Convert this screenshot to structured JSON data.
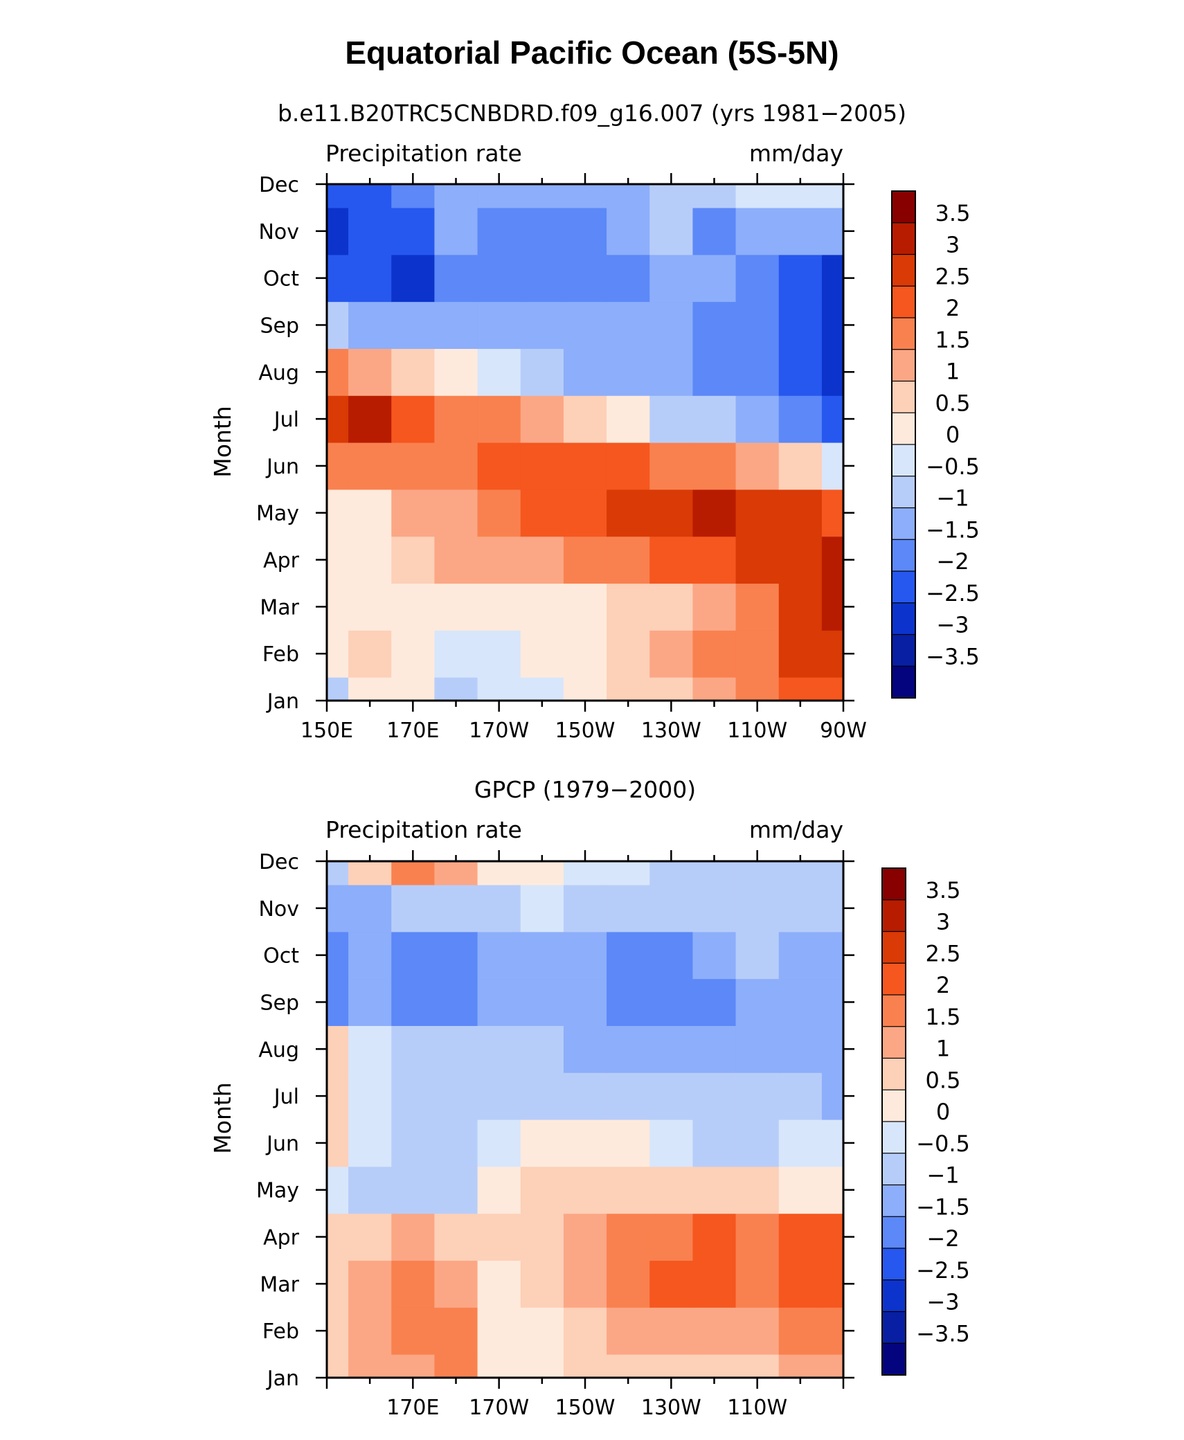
{
  "figure": {
    "title": "Equatorial Pacific Ocean (5S-5N)"
  },
  "colorbar": {
    "levels": [
      "3.5",
      "3",
      "2.5",
      "2",
      "1.5",
      "1",
      "0.5",
      "0",
      "−0.5",
      "−1",
      "−1.5",
      "−2",
      "−2.5",
      "−3",
      "−3.5"
    ],
    "colors": [
      "#880000",
      "#b81c00",
      "#d93a06",
      "#f5571f",
      "#f9814f",
      "#fba785",
      "#fdd0b8",
      "#feeadc",
      "#d7e6fb",
      "#b7cdf9",
      "#8daefa",
      "#5c88f8",
      "#2658ef",
      "#0c34cc",
      "#081fa3",
      "#04047f"
    ]
  },
  "chart_data": [
    {
      "type": "heatmap",
      "subtitle": "b.e11.B20TRC5CNBDRD.f09_g16.007 (yrs 1981−2005)",
      "left_label": "Precipitation rate",
      "right_label": "mm/day",
      "ylabel": "Month",
      "xlabel": "",
      "x_tick_labels": [
        "150E",
        "170E",
        "170W",
        "150W",
        "130W",
        "110W",
        "90W"
      ],
      "x_tick_values": [
        150,
        170,
        190,
        210,
        230,
        250,
        270
      ],
      "xlim": [
        150,
        270
      ],
      "y_tick_labels": [
        "Jan",
        "Feb",
        "Mar",
        "Apr",
        "May",
        "Jun",
        "Jul",
        "Aug",
        "Sep",
        "Oct",
        "Nov",
        "Dec"
      ],
      "ylim": [
        1,
        12
      ],
      "lon": [
        150,
        160,
        170,
        180,
        190,
        200,
        210,
        220,
        230,
        240,
        250,
        260,
        270
      ],
      "month": [
        "Jan",
        "Feb",
        "Mar",
        "Apr",
        "May",
        "Jun",
        "Jul",
        "Aug",
        "Sep",
        "Oct",
        "Nov",
        "Dec"
      ],
      "values": [
        [
          -0.7,
          0.3,
          0.2,
          -0.6,
          -0.3,
          -0.2,
          0.2,
          0.5,
          0.9,
          1.3,
          1.8,
          2.3,
          2.2
        ],
        [
          0.4,
          0.7,
          0.4,
          -0.4,
          -0.4,
          0.1,
          0.4,
          0.6,
          1.2,
          1.6,
          1.8,
          2.5,
          2.8
        ],
        [
          0.2,
          0.1,
          0.1,
          0.2,
          0.2,
          0.3,
          0.4,
          0.6,
          0.5,
          1.2,
          1.8,
          2.6,
          3.0
        ],
        [
          0.3,
          0.3,
          0.6,
          1.0,
          1.2,
          1.3,
          1.6,
          1.8,
          2.0,
          2.4,
          2.7,
          2.9,
          3.3
        ],
        [
          0.3,
          0.2,
          1.0,
          1.4,
          1.8,
          2.2,
          2.3,
          2.7,
          2.8,
          3.3,
          2.8,
          2.6,
          2.4
        ],
        [
          1.5,
          1.7,
          1.8,
          1.8,
          2.2,
          2.3,
          2.2,
          2.0,
          1.8,
          1.6,
          1.2,
          0.6,
          -0.3
        ],
        [
          2.7,
          3.1,
          2.2,
          1.9,
          1.7,
          1.4,
          0.9,
          0.3,
          -0.6,
          -1.0,
          -1.3,
          -1.9,
          -2.5
        ],
        [
          1.6,
          1.0,
          0.6,
          0.1,
          -0.5,
          -0.8,
          -1.1,
          -1.3,
          -1.5,
          -1.7,
          -2.0,
          -2.3,
          -2.6
        ],
        [
          -0.7,
          -1.1,
          -1.3,
          -1.3,
          -1.4,
          -1.5,
          -1.5,
          -1.4,
          -1.4,
          -1.6,
          -2.0,
          -2.4,
          -2.8
        ],
        [
          -2.4,
          -2.5,
          -2.6,
          -2.0,
          -1.8,
          -1.8,
          -1.8,
          -1.7,
          -1.2,
          -1.4,
          -1.7,
          -2.1,
          -2.9
        ],
        [
          -2.6,
          -2.4,
          -2.3,
          -1.5,
          -1.8,
          -1.9,
          -1.8,
          -1.2,
          -1.0,
          -1.7,
          -1.5,
          -1.3,
          -1.4
        ],
        [
          -2.2,
          -2.3,
          -1.6,
          -1.3,
          -1.2,
          -1.3,
          -1.3,
          -1.1,
          -1.0,
          -0.6,
          -0.5,
          -0.3,
          -0.1
        ]
      ]
    },
    {
      "type": "heatmap",
      "subtitle": "GPCP (1979−2000)",
      "left_label": "Precipitation rate",
      "right_label": "mm/day",
      "ylabel": "Month",
      "xlabel": "",
      "x_tick_labels": [
        "170E",
        "170W",
        "150W",
        "130W",
        "110W"
      ],
      "x_tick_values": [
        170,
        190,
        210,
        230,
        250
      ],
      "xlim": [
        150,
        270
      ],
      "y_tick_labels": [
        "Jan",
        "Feb",
        "Mar",
        "Apr",
        "May",
        "Jun",
        "Jul",
        "Aug",
        "Sep",
        "Oct",
        "Nov",
        "Dec"
      ],
      "ylim": [
        1,
        12
      ],
      "lon": [
        150,
        160,
        170,
        180,
        190,
        200,
        210,
        220,
        230,
        240,
        250,
        260,
        270
      ],
      "month": [
        "Jan",
        "Feb",
        "Mar",
        "Apr",
        "May",
        "Jun",
        "Jul",
        "Aug",
        "Sep",
        "Oct",
        "Nov",
        "Dec"
      ],
      "values": [
        [
          0.6,
          1.3,
          1.2,
          1.9,
          0.2,
          0.3,
          0.6,
          0.7,
          0.7,
          0.9,
          0.9,
          1.1,
          1.2
        ],
        [
          0.8,
          1.2,
          1.7,
          1.6,
          0.2,
          0.3,
          0.8,
          1.0,
          1.1,
          1.2,
          1.3,
          1.5,
          1.6
        ],
        [
          0.9,
          1.3,
          1.6,
          1.4,
          0.4,
          0.6,
          1.0,
          1.6,
          2.0,
          2.2,
          1.7,
          2.1,
          2.0
        ],
        [
          0.6,
          0.7,
          1.0,
          0.9,
          0.8,
          0.9,
          1.2,
          1.6,
          1.9,
          2.2,
          1.8,
          2.2,
          2.0
        ],
        [
          -0.4,
          -0.7,
          -0.8,
          -0.9,
          0.3,
          0.6,
          0.7,
          0.7,
          0.6,
          0.6,
          0.5,
          0.4,
          0.3
        ],
        [
          0.7,
          -0.2,
          -0.6,
          -0.8,
          -0.4,
          0.2,
          0.2,
          0.1,
          -0.3,
          -0.6,
          -0.6,
          -0.5,
          -0.5
        ],
        [
          0.6,
          -0.2,
          -0.9,
          -0.9,
          -0.8,
          -0.8,
          -0.7,
          -0.8,
          -0.8,
          -0.9,
          -0.9,
          -1.0,
          -1.1
        ],
        [
          0.6,
          -0.3,
          -0.9,
          -0.9,
          -1.0,
          -1.0,
          -1.1,
          -1.3,
          -1.3,
          -1.1,
          -1.1,
          -1.4,
          -1.2
        ],
        [
          -1.7,
          -1.2,
          -1.9,
          -1.7,
          -1.4,
          -1.1,
          -1.5,
          -1.6,
          -1.6,
          -1.7,
          -1.1,
          -1.1,
          -1.4
        ],
        [
          -1.6,
          -1.2,
          -2.0,
          -2.0,
          -1.3,
          -1.1,
          -1.4,
          -1.7,
          -1.6,
          -1.4,
          -0.9,
          -1.2,
          -1.5
        ],
        [
          -1.4,
          -1.1,
          -0.8,
          -0.8,
          -0.6,
          -0.5,
          -0.6,
          -0.7,
          -0.8,
          -0.7,
          -0.7,
          -0.7,
          -0.7
        ],
        [
          -0.7,
          0.7,
          1.6,
          1.3,
          0.4,
          0.0,
          -0.2,
          -0.5,
          -0.6,
          -0.7,
          -0.7,
          -0.8,
          -0.8
        ]
      ]
    }
  ]
}
